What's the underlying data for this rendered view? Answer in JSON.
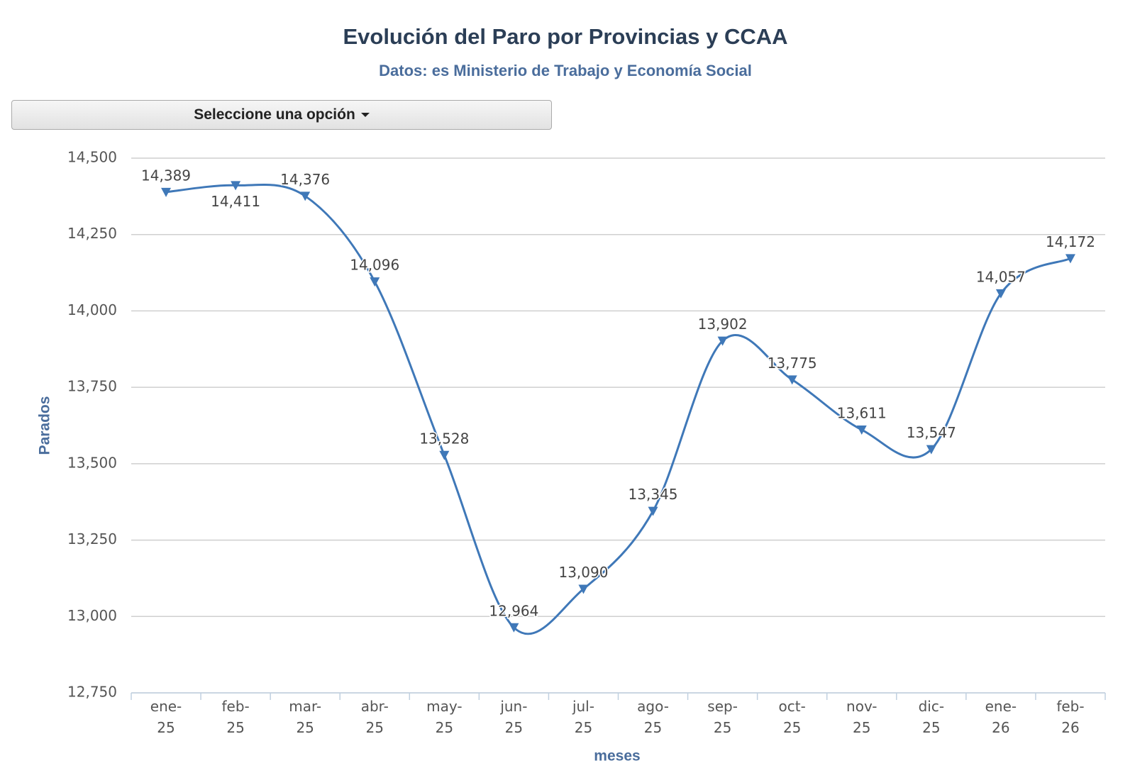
{
  "controls": {
    "dropdown": "Seleccione una opción"
  },
  "chart_data": {
    "type": "line",
    "title": "Evolución del Paro por Provincias y CCAA",
    "subtitle": "Datos: es Ministerio de Trabajo y Economía Social",
    "y_label": "Parados",
    "x_label": "meses",
    "categories": [
      "ene-25",
      "feb-25",
      "mar-25",
      "abr-25",
      "may-25",
      "jun-25",
      "jul-25",
      "ago-25",
      "sep-25",
      "oct-25",
      "nov-25",
      "dic-25",
      "ene-26",
      "feb-26"
    ],
    "series": [
      {
        "name": "Parados",
        "color": "#3f78b8",
        "values": [
          14389,
          14411,
          14376,
          14096,
          13528,
          12964,
          13090,
          13345,
          13902,
          13775,
          13611,
          13547,
          14057,
          14172
        ],
        "value_labels": [
          "14,389",
          "14,411",
          "14,376",
          "14,096",
          "13,528",
          "12,964",
          "13,090",
          "13,345",
          "13,902",
          "13,775",
          "13,611",
          "13,547",
          "14,057",
          "14,172"
        ]
      }
    ],
    "ylim": [
      12750,
      14500
    ],
    "yticks": [
      {
        "value": 12750,
        "label": "12,750"
      },
      {
        "value": 13000,
        "label": "13,000"
      },
      {
        "value": 13250,
        "label": "13,250"
      },
      {
        "value": 13500,
        "label": "13,500"
      },
      {
        "value": 13750,
        "label": "13,750"
      },
      {
        "value": 14000,
        "label": "14,000"
      },
      {
        "value": 14250,
        "label": "14,250"
      },
      {
        "value": 14500,
        "label": "14,500"
      }
    ],
    "grid": true
  }
}
